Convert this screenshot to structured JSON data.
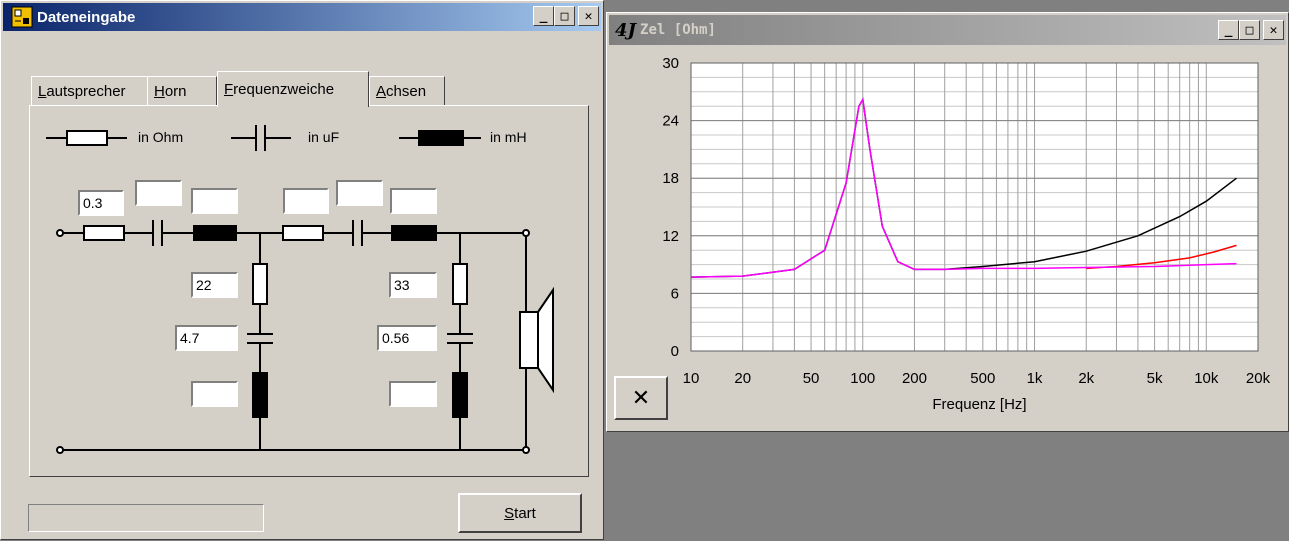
{
  "left_window": {
    "title": "Dateneingabe",
    "buttons": {
      "minimize": "_",
      "maximize": "□",
      "close": "✕"
    },
    "tabs": [
      {
        "label_u": "L",
        "label_rest": "autsprecher"
      },
      {
        "label_u": "H",
        "label_rest": "orn"
      },
      {
        "label_u": "F",
        "label_rest": "requenzweiche"
      },
      {
        "label_u": "A",
        "label_rest": "chsen"
      }
    ],
    "legend": {
      "resistor": "in Ohm",
      "capacitor": "in uF",
      "inductor": "in mH"
    },
    "inputs": {
      "series_r1": "0.3",
      "series_c1": "",
      "series_l1": "",
      "series_r2": "",
      "series_c2": "",
      "series_l2": "",
      "shunt1_r": "22",
      "shunt1_c": "4.7",
      "shunt1_l": "",
      "shunt2_r": "33",
      "shunt2_c": "0.56",
      "shunt2_l": ""
    },
    "start_button": {
      "label_u": "S",
      "label_rest": "tart"
    }
  },
  "right_window": {
    "title": "Zel [Ohm]",
    "logo": "4J",
    "buttons": {
      "minimize": "_",
      "maximize": "□",
      "close": "✕"
    },
    "reset_button": "✕"
  },
  "chart_data": {
    "type": "line",
    "title": "Zel [Ohm]",
    "xlabel": "Frequenz [Hz]",
    "ylabel": "",
    "xscale": "log",
    "xlim": [
      10,
      20000
    ],
    "ylim": [
      0,
      30
    ],
    "xticks": [
      10,
      20,
      50,
      100,
      200,
      500,
      1000,
      2000,
      5000,
      10000,
      20000
    ],
    "xtick_labels": [
      "10",
      "20",
      "50",
      "100",
      "200",
      "500",
      "1k",
      "2k",
      "5k",
      "10k",
      "20k"
    ],
    "yticks": [
      0,
      6,
      12,
      18,
      24,
      30
    ],
    "ytick_labels": [
      "0",
      "6",
      "12",
      "18",
      "24",
      "30"
    ],
    "grid": true,
    "series": [
      {
        "color": "#000000",
        "x": [
          10,
          20,
          40,
          60,
          80,
          95,
          100,
          110,
          130,
          160,
          200,
          300,
          500,
          1000,
          2000,
          4000,
          7000,
          10000,
          15000
        ],
        "y": [
          7.7,
          7.8,
          8.5,
          10.5,
          17.5,
          25.5,
          26.2,
          21,
          13,
          9.3,
          8.5,
          8.5,
          8.8,
          9.3,
          10.4,
          12,
          14,
          15.6,
          18
        ]
      },
      {
        "color": "#ff0000",
        "x": [
          2000,
          3000,
          5000,
          8000,
          11000,
          15000
        ],
        "y": [
          8.6,
          8.8,
          9.2,
          9.7,
          10.3,
          11
        ]
      },
      {
        "color": "#ff00ff",
        "x": [
          10,
          20,
          40,
          60,
          80,
          95,
          100,
          110,
          130,
          160,
          200,
          300,
          500,
          1000,
          2000,
          5000,
          10000,
          15000
        ],
        "y": [
          7.7,
          7.8,
          8.5,
          10.5,
          17.5,
          25.5,
          26.2,
          21,
          13,
          9.3,
          8.5,
          8.5,
          8.6,
          8.6,
          8.7,
          8.8,
          9.0,
          9.1
        ]
      }
    ]
  }
}
